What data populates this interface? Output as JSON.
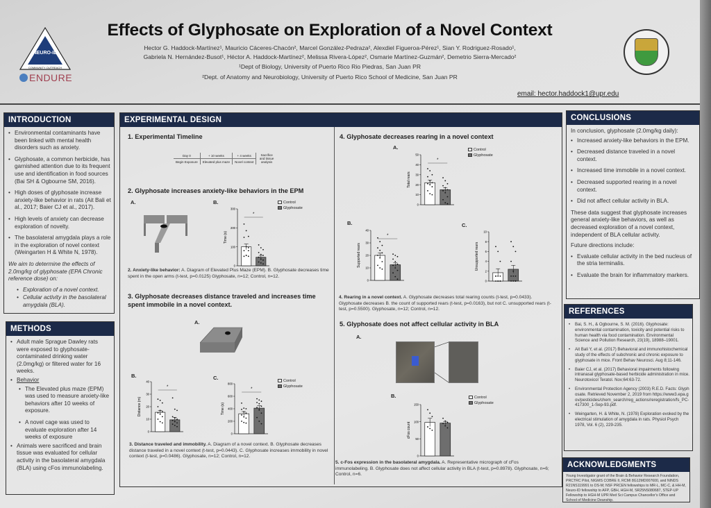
{
  "header": {
    "title": "Effects of Glyphosate on Exploration of a Novel Context",
    "authors_line1": "Hector G. Haddock-Martínez¹, Mauricio Cáceres-Chacón², Marcel González-Pedraza², Alexdiel Figueroa-Pérez¹, Sian Y. Rodriguez-Rosado¹,",
    "authors_line2": "Gabriela N. Hernández-Busot¹, Héctor A. Haddock-Martínez², Melissa Rivera-López², Osmarie Martínez-Guzmán², Demetrio Sierra-Mercado²",
    "aff1": "¹Dept of Biology, University of Puerto Rico Rio Piedras, San Juan PR",
    "aff2": "²Dept. of Anatomy and Neurobiology, University of Puerto Rico School of Medicine, San Juan PR",
    "email": "email: hector.haddock1@upr.edu"
  },
  "logos": {
    "left_main": "NEURO-ID",
    "left_bottom": "COMMUNITY OUTREACH",
    "left_sides": [
      "RESEARCH",
      "ACADEMIC"
    ],
    "endure": "ENDURE",
    "seal": "RECINTO DE CIENCIAS MÉDICAS · UNIVERSIDAD DE PUERTO RICO"
  },
  "introduction": {
    "title": "INTRODUCTION",
    "bullets": [
      "Environmental contaminants have been linked with mental health disorders such as anxiety.",
      "Glyphosate, a common herbicide, has garnished attention due to its frequent use and identification in food sources (Bai SH & Ogbourne SM, 2016).",
      "High doses of glyphosate increase anxiety-like behavior in rats (Ait Bali et al., 2017; Baier CJ et al., 2017).",
      "High levels of anxiety can decrease exploration of novelty.",
      "The basolateral amygdala plays a role in the exploration of novel context (Weingarten H & White N, 1978)."
    ],
    "aim": "We aim to determine the effects of 2.0mg/kg of glyphosate (EPA Chronic reference dose) on:",
    "aims": [
      "Exploration of a novel context.",
      "Cellular activity in the basolateral amygdala (BLA)."
    ]
  },
  "methods": {
    "title": "METHODS",
    "b1": "Adult male Sprague Dawley rats were exposed to glyphosate-contaminated drinking water (2.0mg/kg) or filtered water for 16 weeks.",
    "b2": "Behavior",
    "sub": [
      "The Elevated plus maze (EPM) was used to measure anxiety-like behaviors after 10 weeks of exposure.",
      "A novel cage was used to evaluate exploration after 14 weeks of exposure"
    ],
    "b3": "Animals were sacrificed and brain tissue was evaluated for cellular activity in the basolateral amygdala (BLA) using cFos immunolabeling."
  },
  "design": {
    "title": "EXPERIMENTAL DESIGN",
    "s1": "1. Experimental Timeline",
    "timeline": {
      "top": [
        "Day 0",
        "+ 10 weeks",
        "+ 4 weeks",
        "Sacrifice and tissue analysis"
      ],
      "bottom": [
        "Begin Exposure",
        "Elevated plus maze",
        "Novel context"
      ]
    },
    "s2": "2. Glyphosate increases anxiety-like behaviors in the EPM",
    "cap2_bold": "2. Anxiety-like behavior:",
    "cap2": " A. Diagram of Elevated Plus Maze (EPM). B. Glyphosate decreases time spent in the open arms (t-test, p=0.0125) Glyphosate, n=12; Control, n=12.",
    "s3": "3. Glyphosate decreases distance traveled and increases time spent immobile in a novel context.",
    "cap3_bold": "3. Distance traveled and immobility.",
    "cap3": " A. Diagram of a novel context. B. Glyphosate decreases distance traveled in a novel context (t-test, p=0.0443). C. Glyphosate increases immobility in novel context (t-test, p=0.0486). Glyphosate, n=12; Control, n=12.",
    "s4": "4. Glyphosate decreases rearing in a novel context",
    "cap4_bold": "4. Rearing in a novel context.",
    "cap4": " A. Glyphosate decreases total rearing counts (t-test, p=0.0433). Glyphosate decreases B. the count of supported rears (t-test, p=0.0163), but not C. unsupported rears (t-test, p=0.5500). Glyphosate, n=12; Control, n=12.",
    "s5": "5. Glyphosate does not affect cellular activity in BLA",
    "cap5_bold": "5. c-Fos expression in the basolateral amygdala.",
    "cap5": " A. Representative micrograph of cFos immunolabeling. B. Glyphosate does not affect cellular activity in BLA (t-test, p=0.8978). Glyphosate, n=6; Control, n=6.",
    "labels": {
      "A": "A.",
      "B": "B.",
      "C": "C."
    },
    "legend": {
      "control": "Control",
      "glyphosate": "Glyphosate"
    }
  },
  "conclusions": {
    "title": "CONCLUSIONS",
    "intro": "In conclusion, glyphosate (2.0mg/kg daily):",
    "bullets": [
      "Increased anxiety-like behaviors in the EPM.",
      "Decreased distance traveled in a novel context.",
      "Increased time immobile in a novel context.",
      "Decreased supported rearing in a novel context.",
      "Did not affect cellular activity in BLA."
    ],
    "summary": "These data suggest that glyphosate increases general anxiety-like behaviors, as well as decreased exploration of a novel context, independent of BLA cellular activity.",
    "future": "Future directions include:",
    "future_bullets": [
      "Evaluate cellular activity in the bed nucleus of the stria terminalis.",
      "Evaluate the brain for inflammatory markers."
    ]
  },
  "references": {
    "title": "REFERENCES",
    "items": [
      "Bai, S. H., & Ogbourne, S. M. (2016). Glyphosate: environmental contamination, toxicity and potential risks to human health via food contamination. Environmental Science and Pollution Research, 23(19), 18988–19001.",
      "Ait Bali Y, et al. (2017) Behavioral and immunohistochemical study of the effects of subchronic and chronic exposure to glyphosate in mice. Front Behav Neurosci. Aug 8;11-146.",
      "Baier CJ, et al. (2017) Behavioral impairments following intranasal glyphosate-based herbicide administration in mice. Neurotoxicol Teratol. Nov;64:63-72.",
      "Environmental Protection Agency (2003) R.E.D. Facts: Glyphosate. Retrieved November 2, 2019 from https://www3.epa.gov/pesticides/chem_search/reg_actions/reregistration/fs_PC-417300_1-Sep-93.pdf.",
      "Weingarten, H. & White, N. (1978) Exploration evoked by the electrical stimulation of amygdala in rats. Physiol Psych 1978, Vol. 6 (2), 229-235."
    ]
  },
  "acknowledgments": {
    "title": "ACKNOWLEDGMENTS",
    "text": "Young Investigator grant of the Brain & Behavior Research Foundation, PRCTRC Pilot, NIGMS COBRE II, RCMI 8G12MD007600, and NINDS R21NS119991 to DS-M; NSF PRCEN fellowships to MR-L, MC-C, & HH-M, Neuro-ID fellowship to AFP, GBH, HGH-M, SR25NS080687, STEP-UP Fellowship to HGH-M UPR Med Sci Campus Chancellor's Office and School of Medicine Deanship."
  },
  "chart_data": [
    {
      "id": "epm",
      "type": "bar",
      "ylabel": "Time (s)",
      "ylim": [
        0,
        300
      ],
      "ticks": [
        0,
        100,
        200,
        300
      ],
      "sig": "*",
      "categories": [
        "Control",
        "Glyphosate"
      ],
      "series": [
        {
          "name": "Control",
          "mean": 100,
          "sem": 15,
          "points": [
            220,
            185,
            155,
            150,
            100,
            95,
            80,
            55,
            50,
            50,
            55,
            80
          ]
        },
        {
          "name": "Glyphosate",
          "mean": 45,
          "sem": 10,
          "points": [
            110,
            95,
            85,
            70,
            60,
            55,
            45,
            35,
            30,
            20,
            15,
            10
          ]
        }
      ]
    },
    {
      "id": "dist",
      "type": "bar",
      "ylabel": "Distance (m)",
      "ylim": [
        0,
        40
      ],
      "ticks": [
        0,
        10,
        20,
        30,
        40
      ],
      "sig": "*",
      "categories": [
        "Control",
        "Glyphosate"
      ],
      "series": [
        {
          "name": "Control",
          "mean": 15.5,
          "sem": 1.5,
          "points": [
            26,
            25,
            23,
            20,
            17,
            16,
            15,
            14,
            12,
            10,
            8,
            7
          ]
        },
        {
          "name": "Glyphosate",
          "mean": 9.5,
          "sem": 2,
          "points": [
            27,
            18,
            17,
            12,
            11,
            10,
            9,
            8,
            7,
            6,
            5,
            4
          ]
        }
      ]
    },
    {
      "id": "immob",
      "type": "bar",
      "ylabel": "Time (s)",
      "ylim": [
        0,
        800
      ],
      "ticks": [
        0,
        200,
        400,
        600,
        800
      ],
      "sig": "*",
      "categories": [
        "Control",
        "Glyphosate"
      ],
      "series": [
        {
          "name": "Control",
          "mean": 320,
          "sem": 35,
          "points": [
            490,
            410,
            400,
            390,
            350,
            330,
            300,
            270,
            250,
            200,
            180,
            170
          ]
        },
        {
          "name": "Glyphosate",
          "mean": 410,
          "sem": 40,
          "points": [
            560,
            540,
            520,
            500,
            480,
            440,
            420,
            380,
            330,
            260,
            200,
            160
          ]
        }
      ]
    },
    {
      "id": "total",
      "type": "bar",
      "ylabel": "Total rears",
      "ylim": [
        0,
        50
      ],
      "ticks": [
        0,
        10,
        20,
        30,
        40,
        50
      ],
      "sig": "*",
      "categories": [
        "Control",
        "Glyphosate"
      ],
      "series": [
        {
          "name": "Control",
          "mean": 22,
          "sem": 2.5,
          "points": [
            36,
            34,
            30,
            28,
            24,
            22,
            21,
            20,
            18,
            14,
            11,
            10
          ]
        },
        {
          "name": "Glyphosate",
          "mean": 15,
          "sem": 2,
          "points": [
            27,
            24,
            21,
            19,
            17,
            15,
            14,
            12,
            8,
            5,
            2,
            1
          ]
        }
      ]
    },
    {
      "id": "supp",
      "type": "bar",
      "ylabel": "Supported rears",
      "ylim": [
        0,
        40
      ],
      "ticks": [
        0,
        10,
        20,
        30,
        40
      ],
      "sig": "*",
      "categories": [
        "Control",
        "Glyphosate"
      ],
      "series": [
        {
          "name": "Control",
          "mean": 20,
          "sem": 2,
          "points": [
            34,
            31,
            28,
            26,
            24,
            22,
            20,
            18,
            15,
            12,
            10,
            9
          ]
        },
        {
          "name": "Glyphosate",
          "mean": 12.5,
          "sem": 1.5,
          "points": [
            21,
            20,
            19,
            17,
            15,
            13,
            12,
            10,
            8,
            6,
            3,
            1
          ]
        }
      ]
    },
    {
      "id": "unsupp",
      "type": "bar",
      "ylabel": "Unsupported rears",
      "ylim": [
        0,
        10
      ],
      "ticks": [
        0,
        2,
        4,
        6,
        8,
        10
      ],
      "sig": "",
      "categories": [
        "Control",
        "Glyphosate"
      ],
      "series": [
        {
          "name": "Control",
          "mean": 1.7,
          "sem": 0.8,
          "points": [
            7,
            6,
            4,
            1,
            1,
            1,
            1,
            0,
            0,
            0,
            0,
            0
          ]
        },
        {
          "name": "Glyphosate",
          "mean": 2.4,
          "sem": 0.8,
          "points": [
            8,
            7,
            6,
            4,
            2,
            1,
            1,
            1,
            0,
            0,
            0,
            0
          ]
        }
      ]
    },
    {
      "id": "cfos",
      "type": "bar",
      "ylabel": "cFos count",
      "ylim": [
        0,
        150
      ],
      "ticks": [
        0,
        50,
        100,
        150
      ],
      "sig": "",
      "categories": [
        "Control",
        "Glyphosate"
      ],
      "series": [
        {
          "name": "Control",
          "mean": 98,
          "sem": 12,
          "points": [
            135,
            125,
            115,
            85,
            80,
            75
          ]
        },
        {
          "name": "Glyphosate",
          "mean": 96,
          "sem": 5,
          "points": [
            110,
            102,
            98,
            95,
            88,
            82
          ]
        }
      ]
    }
  ],
  "colors": {
    "header_bar": "#1c2a48",
    "control": "#ffffff",
    "glyphosate": "#6e6e6e"
  }
}
